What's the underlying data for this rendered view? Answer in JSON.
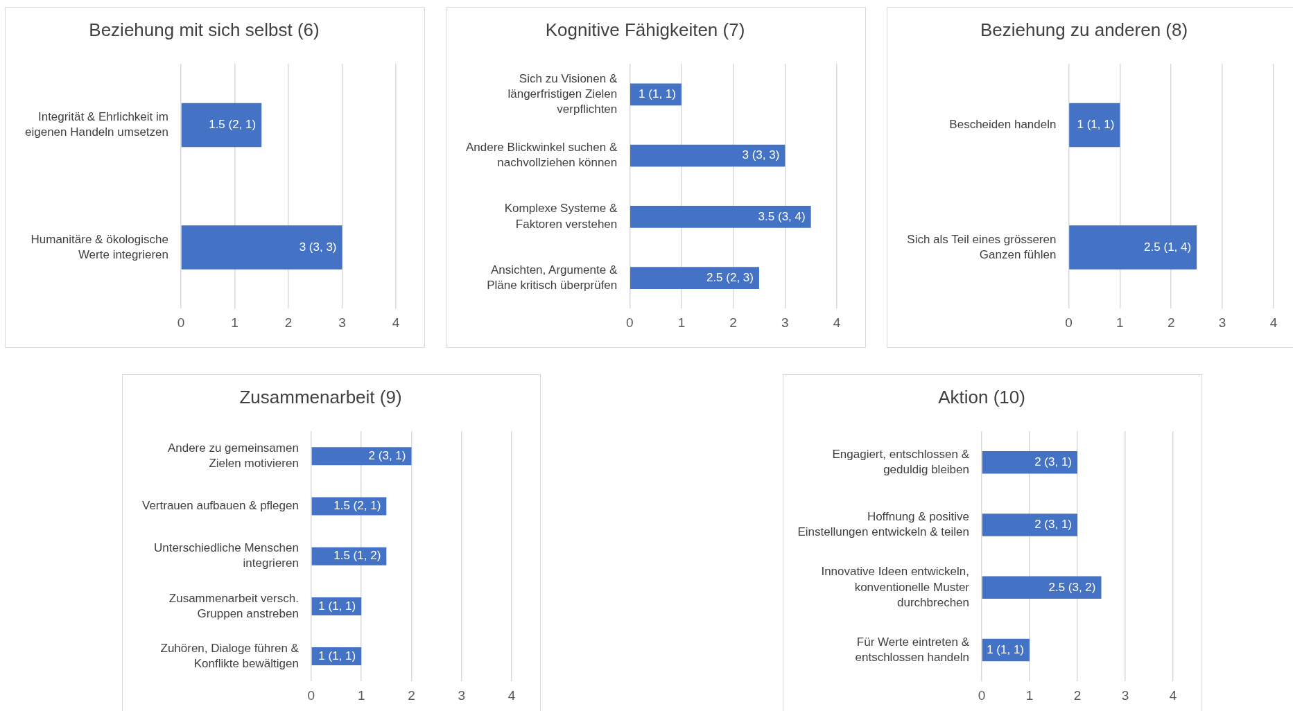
{
  "chart_data": [
    {
      "type": "bar",
      "orientation": "horizontal",
      "title": "Beziehung mit sich selbst (6)",
      "categories": [
        "Integrität & Ehrlichkeit im eigenen Handeln umsetzen",
        "Humanitäre & ökologische Werte integrieren"
      ],
      "values": [
        1.5,
        3
      ],
      "value_labels": [
        "1.5 (2, 1)",
        "3 (3, 3)"
      ],
      "color": "#4472c4",
      "xlim": [
        0,
        4
      ],
      "xticks": [
        0,
        1,
        2,
        3,
        4
      ],
      "grid": "x"
    },
    {
      "type": "bar",
      "orientation": "horizontal",
      "title": "Kognitive Fähigkeiten (7)",
      "categories": [
        "Sich zu Visionen & längerfristigen Zielen verpflichten",
        "Andere Blickwinkel suchen & nachvollziehen können",
        "Komplexe Systeme & Faktoren verstehen",
        "Ansichten, Argumente & Pläne kritisch überprüfen"
      ],
      "values": [
        1,
        3,
        3.5,
        2.5
      ],
      "value_labels": [
        "1 (1, 1)",
        "3 (3, 3)",
        "3.5 (3, 4)",
        "2.5 (2, 3)"
      ],
      "color": "#4472c4",
      "xlim": [
        0,
        4
      ],
      "xticks": [
        0,
        1,
        2,
        3,
        4
      ],
      "grid": "x"
    },
    {
      "type": "bar",
      "orientation": "horizontal",
      "title": "Beziehung zu anderen (8)",
      "categories": [
        "Bescheiden handeln",
        "Sich als Teil eines grösseren Ganzen fühlen"
      ],
      "values": [
        1,
        2.5
      ],
      "value_labels": [
        "1 (1, 1)",
        "2.5 (1, 4)"
      ],
      "color": "#4472c4",
      "xlim": [
        0,
        4
      ],
      "xticks": [
        0,
        1,
        2,
        3,
        4
      ],
      "grid": "x"
    },
    {
      "type": "bar",
      "orientation": "horizontal",
      "title": "Zusammenarbeit (9)",
      "categories": [
        "Andere zu gemeinsamen Zielen motivieren",
        "Vertrauen aufbauen & pflegen",
        "Unterschiedliche Menschen integrieren",
        "Zusammenarbeit versch. Gruppen anstreben",
        "Zuhören, Dialoge führen & Konflikte bewältigen"
      ],
      "values": [
        2,
        1.5,
        1.5,
        1,
        1
      ],
      "value_labels": [
        "2 (3, 1)",
        "1.5 (2, 1)",
        "1.5 (1, 2)",
        "1 (1, 1)",
        "1 (1, 1)"
      ],
      "color": "#4472c4",
      "xlim": [
        0,
        4
      ],
      "xticks": [
        0,
        1,
        2,
        3,
        4
      ],
      "grid": "x"
    },
    {
      "type": "bar",
      "orientation": "horizontal",
      "title": "Aktion (10)",
      "categories": [
        "Engagiert, entschlossen & geduldig bleiben",
        "Hoffnung & positive Einstellungen entwickeln & teilen",
        "Innovative Ideen entwickeln, konventionelle Muster durchbrechen",
        "Für Werte eintreten & entschlossen handeln"
      ],
      "values": [
        2,
        2,
        2.5,
        1
      ],
      "value_labels": [
        "2 (3, 1)",
        "2 (3, 1)",
        "2.5 (3, 2)",
        "1 (1, 1)"
      ],
      "color": "#4472c4",
      "xlim": [
        0,
        4
      ],
      "xticks": [
        0,
        1,
        2,
        3,
        4
      ],
      "grid": "x"
    }
  ]
}
